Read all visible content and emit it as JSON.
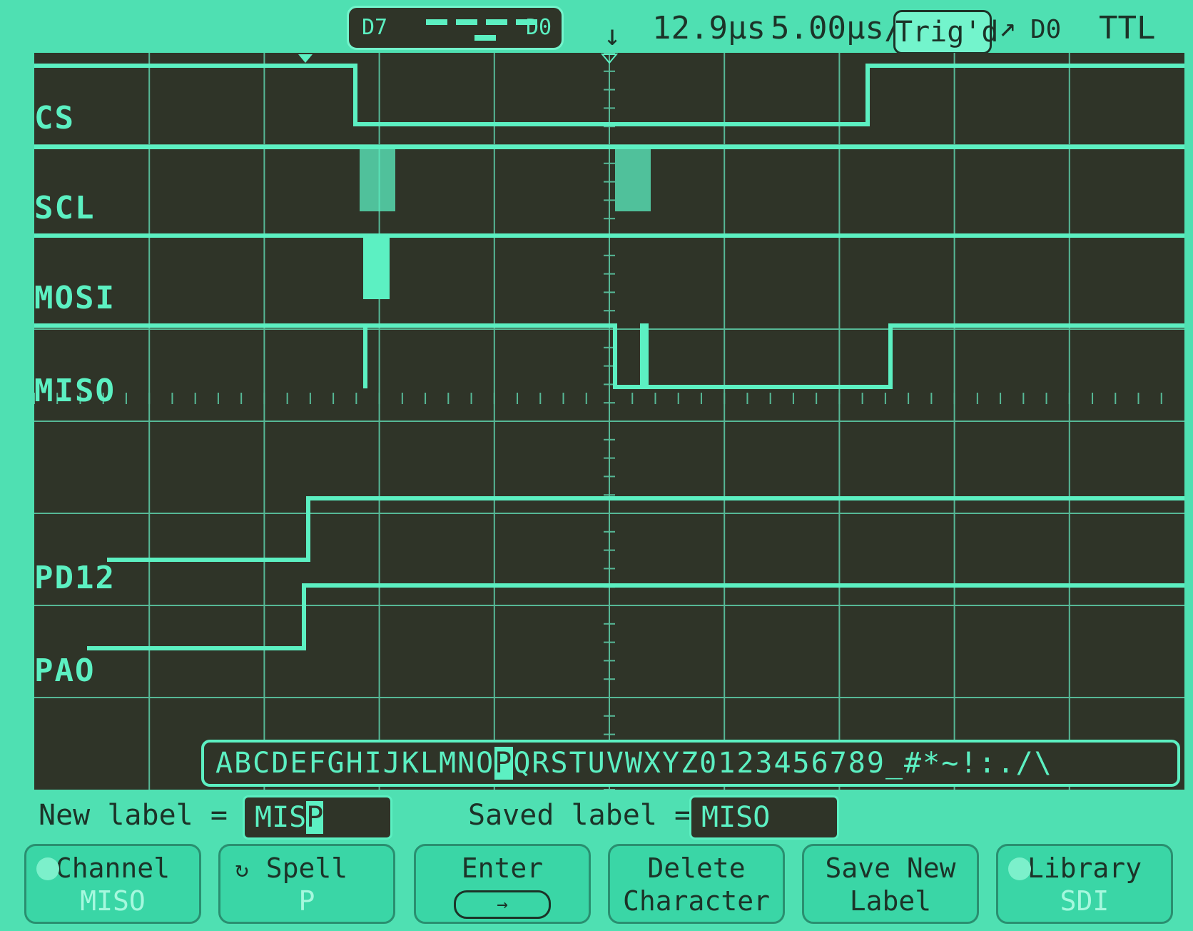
{
  "status": {
    "bits_left": "D7",
    "bits_right": "D0",
    "delay": "12.9µs",
    "timebase": "5.00µs/",
    "trig_state": "Trig'd",
    "trig_slope_icon": "rising-edge-icon",
    "trig_source": "D0",
    "logic_level": "TTL"
  },
  "channels": [
    {
      "id": "D5",
      "label": "CS"
    },
    {
      "id": "D2",
      "label": "SCL"
    },
    {
      "id": "D3",
      "label": "MOSI"
    },
    {
      "id": "D4",
      "label": "MISO"
    },
    {
      "id": "D1",
      "label": "PD12"
    },
    {
      "id": "D0",
      "label": "PAO"
    }
  ],
  "alphabet": {
    "before": "ABCDEFGHIJKLMNO",
    "selected": "P",
    "after": "QRSTUVWXYZ0123456789_#*~!:.",
    "caret_icon": "caret-up-icon"
  },
  "new_label": {
    "caption": "New label =",
    "text": "MIS",
    "cursor": "P"
  },
  "saved_label": {
    "caption": "Saved label =",
    "text": "MISO"
  },
  "softkeys": [
    {
      "title": "Channel",
      "sub": "MISO",
      "icon": "rotate-knob-icon"
    },
    {
      "title": "Spell",
      "sub": "P",
      "icon": "rotate-arrow-icon"
    },
    {
      "title": "Enter",
      "sub": "",
      "icon": "enter-arrow-icon"
    },
    {
      "title": "Delete",
      "sub": "Character",
      "icon": ""
    },
    {
      "title": "Save New",
      "sub": "Label",
      "icon": ""
    },
    {
      "title": "Library",
      "sub": "SDI",
      "icon": "rotate-knob-icon"
    }
  ],
  "colors": {
    "trace": "#5cf0c2",
    "grid": "#56b896",
    "screen": "#2f3428",
    "bezel": "#4fe0b2"
  }
}
